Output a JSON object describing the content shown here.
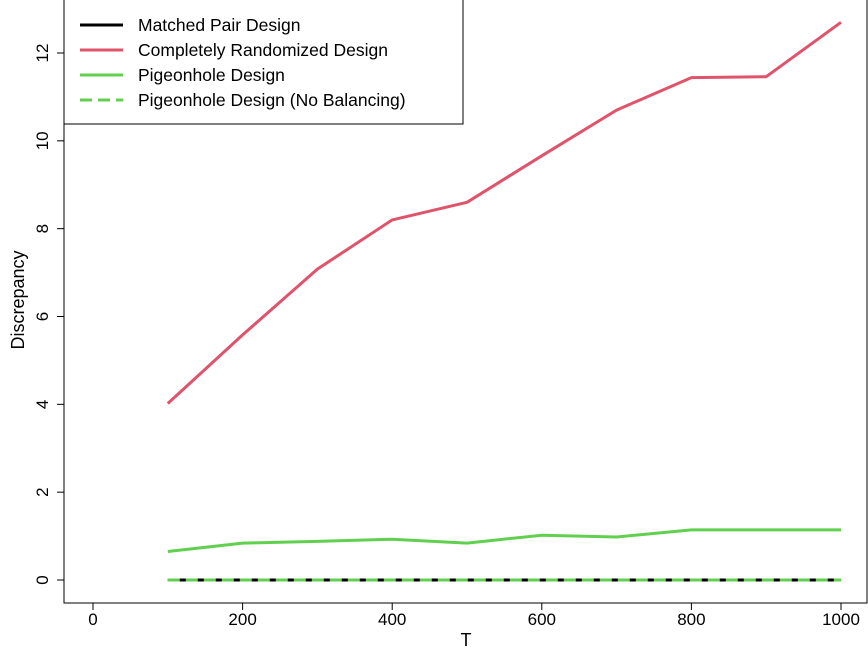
{
  "chart_data": {
    "type": "line",
    "title": "",
    "xlabel": "T",
    "ylabel": "Discrepancy",
    "xlim": [
      0,
      1000
    ],
    "ylim": [
      0,
      12.7
    ],
    "xticks": [
      0,
      200,
      400,
      600,
      800,
      1000
    ],
    "yticks": [
      0,
      2,
      4,
      6,
      8,
      10,
      12
    ],
    "grid": false,
    "legend_position": "top-left",
    "x": [
      100,
      200,
      300,
      400,
      500,
      600,
      700,
      800,
      900,
      1000
    ],
    "series": [
      {
        "name": "Matched Pair Design",
        "color": "#000000",
        "dash": "solid",
        "values": [
          0,
          0,
          0,
          0,
          0,
          0,
          0,
          0,
          0,
          0
        ]
      },
      {
        "name": "Completely Randomized Design",
        "color": "#DF536B",
        "dash": "solid",
        "values": [
          4.02,
          5.58,
          7.08,
          8.2,
          8.6,
          9.66,
          10.7,
          11.44,
          11.46,
          12.7
        ]
      },
      {
        "name": "Pigeonhole Design",
        "color": "#61D04F",
        "dash": "solid",
        "values": [
          0.65,
          0.84,
          0.88,
          0.93,
          0.84,
          1.02,
          0.98,
          1.14,
          1.14,
          1.14
        ]
      },
      {
        "name": "Pigeonhole Design (No Balancing)",
        "color": "#61D04F",
        "dash": "dashed",
        "values": [
          0,
          0,
          0,
          0,
          0,
          0,
          0,
          0,
          0,
          0
        ]
      }
    ]
  }
}
